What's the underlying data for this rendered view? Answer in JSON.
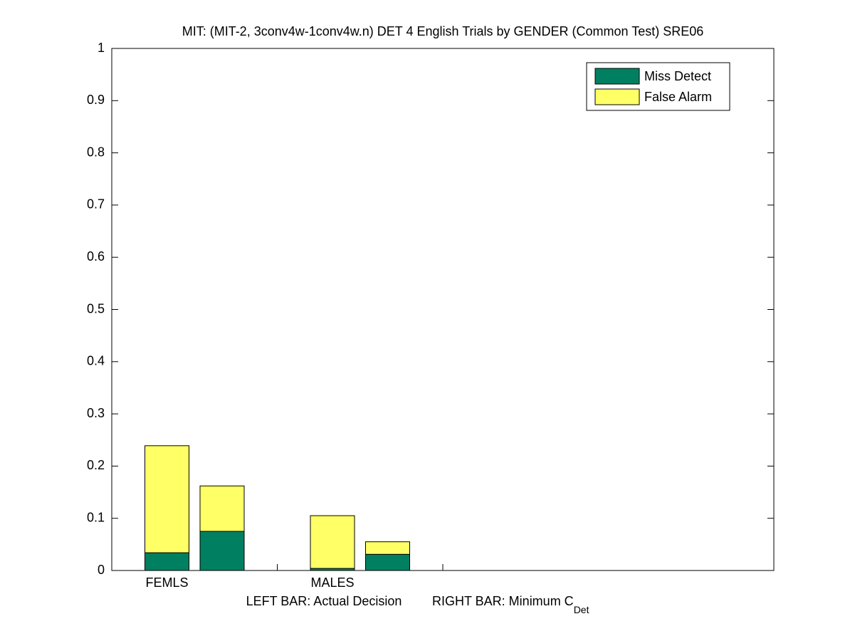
{
  "chart_data": {
    "type": "stacked_bar",
    "title": "MIT: (MIT-2, 3conv4w-1conv4w.n) DET 4 English Trials by GENDER (Common Test) SRE06",
    "xlabel": {
      "left": "LEFT BAR: Actual Decision",
      "right": "RIGHT BAR: Minimum C",
      "subscript": "Det"
    },
    "categories": [
      "FEMLS",
      null,
      "MALES",
      null
    ],
    "series": [
      {
        "name": "Miss Detect",
        "color": "#008060",
        "values": [
          0.034,
          0.075,
          0.004,
          0.031
        ]
      },
      {
        "name": "False Alarm",
        "color": "#ffff66",
        "values": [
          0.205,
          0.087,
          0.101,
          0.024
        ]
      }
    ],
    "ylim": [
      0,
      1
    ],
    "yticks": [
      0,
      0.1,
      0.2,
      0.3,
      0.4,
      0.5,
      0.6,
      0.7,
      0.8,
      0.9,
      1
    ],
    "legend": "upper right"
  }
}
